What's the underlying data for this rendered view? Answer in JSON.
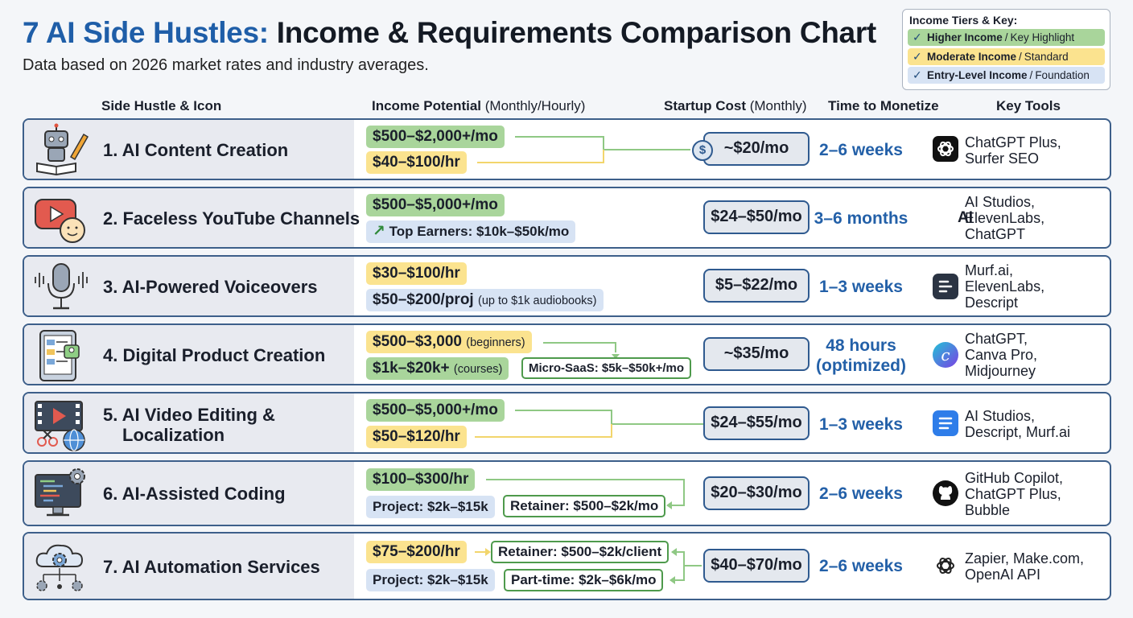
{
  "title_a": "7 AI Side Hustles:",
  "title_b": "Income & Requirements Comparison Chart",
  "subtitle": "Data based on 2026 market rates and industry averages.",
  "legend": {
    "title": "Income Tiers & Key:",
    "items": [
      {
        "bold": "Higher Income",
        "rest": "Key Highlight",
        "color": "#a9d59b"
      },
      {
        "bold": "Moderate Income",
        "rest": "Standard",
        "color": "#fbe38f"
      },
      {
        "bold": "Entry-Level Income",
        "rest": "Foundation",
        "color": "#d7e3f4"
      }
    ]
  },
  "headers": {
    "hustle": "Side Hustle & Icon",
    "income_bold": "Income Potential",
    "income_rest": "(Monthly/Hourly)",
    "cost_bold": "Startup Cost",
    "cost_rest": "(Monthly)",
    "time": "Time to Monetize",
    "tools": "Key Tools"
  },
  "chart_data": {
    "type": "table",
    "columns": [
      "Side Hustle & Icon",
      "Income Potential (Monthly/Hourly)",
      "Startup Cost (Monthly)",
      "Time to Monetize",
      "Key Tools"
    ],
    "rows": [
      {
        "name": "1. AI Content Creation",
        "income": [
          {
            "text": "$500–$2,000+/mo",
            "tier": "g"
          },
          {
            "text": "$40–$100/hr",
            "tier": "y"
          }
        ],
        "cost": "~$20/mo",
        "time": "2–6 weeks",
        "tools": [
          "ChatGPT Plus,",
          "Surfer SEO"
        ]
      },
      {
        "name": "2. Faceless YouTube Channels",
        "income": [
          {
            "text": "$500–$5,000+/mo",
            "tier": "g"
          },
          {
            "text": "Top Earners: $10k–$50k/mo",
            "tier": "b"
          }
        ],
        "cost": "$24–$50/mo",
        "time": "3–6 months",
        "tools": [
          "AI Studios,",
          "ElevenLabs,",
          "ChatGPT"
        ],
        "tool_badge": "AI"
      },
      {
        "name": "3. AI-Powered Voiceovers",
        "income": [
          {
            "text": "$30–$100/hr",
            "tier": "y"
          },
          {
            "text": "$50–$200/proj",
            "note": "(up to $1k audiobooks)",
            "tier": "b"
          }
        ],
        "cost": "$5–$22/mo",
        "time": "1–3 weeks",
        "tools": [
          "Murf.ai,",
          "ElevenLabs,",
          "Descript"
        ]
      },
      {
        "name": "4. Digital Product Creation",
        "income": [
          {
            "text": "$500–$3,000",
            "note": "(beginners)",
            "tier": "y"
          },
          {
            "text": "$1k–$20k+",
            "note": "(courses)",
            "tier": "g"
          },
          {
            "text": "Micro-SaaS: $5k–$50k+/mo",
            "tier": "box"
          }
        ],
        "cost": "~$35/mo",
        "time": "48 hours (optimized)",
        "time_lines": [
          "48 hours",
          "(optimized)"
        ],
        "tools": [
          "ChatGPT,",
          "Canva Pro,",
          "Midjourney"
        ]
      },
      {
        "name": "5. AI Video Editing & Localization",
        "name_lines": [
          "5. AI Video Editing &",
          "Localization"
        ],
        "income": [
          {
            "text": "$500–$5,000+/mo",
            "tier": "g"
          },
          {
            "text": "$50–$120/hr",
            "tier": "y"
          }
        ],
        "cost": "$24–$55/mo",
        "time": "1–3 weeks",
        "tools": [
          "AI Studios,",
          "Descript, Murf.ai"
        ]
      },
      {
        "name": "6. AI-Assisted Coding",
        "income": [
          {
            "text": "$100–$300/hr",
            "tier": "g"
          },
          {
            "text": "Project: $2k–$15k",
            "tier": "b"
          },
          {
            "text": "Retainer: $500–$2k/mo",
            "tier": "box"
          }
        ],
        "cost": "$20–$30/mo",
        "time": "2–6 weeks",
        "tools": [
          "GitHub Copilot,",
          "ChatGPT Plus,",
          "Bubble"
        ]
      },
      {
        "name": "7. AI Automation Services",
        "income": [
          {
            "text": "$75–$200/hr",
            "tier": "y"
          },
          {
            "text": "Project: $2k–$15k",
            "tier": "b"
          },
          {
            "text": "Retainer: $500–$2k/client",
            "tier": "box"
          },
          {
            "text": "Part-time: $2k–$6k/mo",
            "tier": "box"
          }
        ],
        "cost": "$40–$70/mo",
        "time": "2–6 weeks",
        "tools": [
          "Zapier, Make.com,",
          "OpenAI API"
        ]
      }
    ]
  }
}
